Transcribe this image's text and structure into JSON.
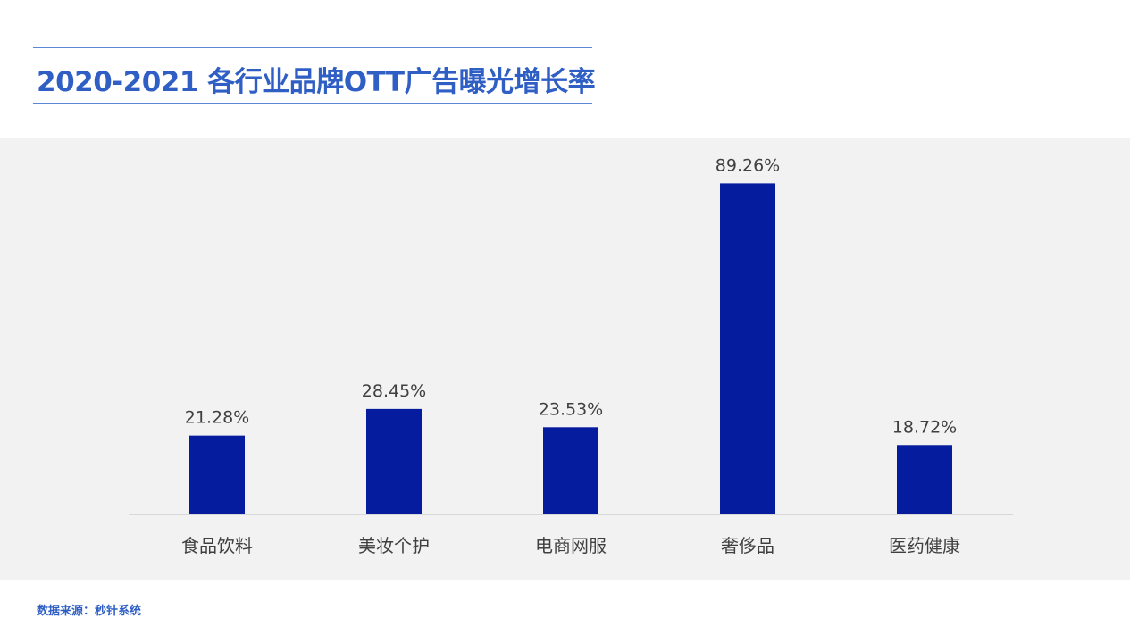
{
  "title": "2020-2021 各行业品牌OTT广告曝光增长率",
  "source": "数据来源：秒针系统",
  "colors": {
    "bar": "#061c9e",
    "title": "#2f5fc4",
    "panel": "#f2f2f2",
    "baseline": "#d8d8d8",
    "label": "#404040"
  },
  "chart_data": {
    "type": "bar",
    "title": "2020-2021 各行业品牌OTT广告曝光增长率",
    "categories": [
      "食品饮料",
      "美妆个护",
      "电商网服",
      "奢侈品",
      "医药健康"
    ],
    "values": [
      21.28,
      28.45,
      23.53,
      89.26,
      18.72
    ],
    "value_labels": [
      "21.28%",
      "28.45%",
      "23.53%",
      "89.26%",
      "18.72%"
    ],
    "unit": "%",
    "xlabel": "",
    "ylabel": "",
    "ylim": [
      0,
      100
    ],
    "grid": false,
    "legend": "none",
    "y_axis_visible": false
  }
}
